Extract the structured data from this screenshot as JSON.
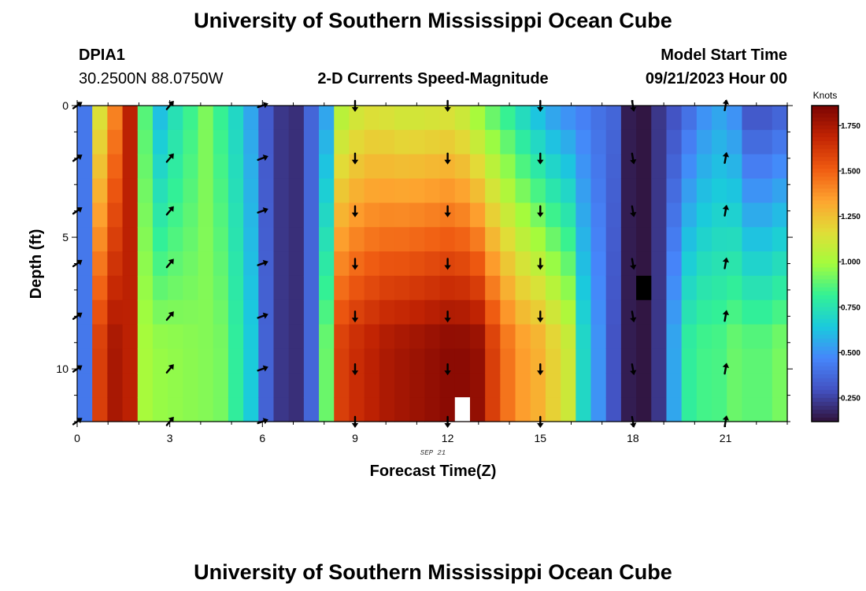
{
  "header": {
    "title": "University of Southern Mississippi Ocean Cube",
    "station": "DPIA1",
    "location": "30.2500N  88.0750W",
    "plot_title": "2-D Currents Speed-Magnitude",
    "model_start_label": "Model Start Time",
    "model_start_value": "09/21/2023 Hour 00"
  },
  "footer": {
    "title": "University of Southern Mississippi Ocean Cube"
  },
  "chart_data": {
    "type": "heatmap",
    "title": "2-D Currents Speed-Magnitude",
    "xlabel": "Forecast Time(Z)",
    "ylabel": "Depth (ft)",
    "date_annotation": "SEP 21",
    "colorbar_unit": "Knots",
    "xlim": [
      0,
      23
    ],
    "ylim": [
      0,
      12
    ],
    "x_ticks": [
      0,
      3,
      6,
      9,
      12,
      15,
      18,
      21
    ],
    "x_tick_labels": [
      "0",
      "3",
      "6",
      "9",
      "12",
      "15",
      "18",
      "21"
    ],
    "y_ticks": [
      0,
      5,
      10
    ],
    "y_tick_labels": [
      "0",
      "5",
      "10"
    ],
    "colorbar_range": [
      0.12,
      1.86
    ],
    "colorbar_ticks": [
      0.25,
      0.5,
      0.75,
      1.0,
      1.25,
      1.5,
      1.75
    ],
    "colorbar_tick_labels": [
      "0.250",
      "0.500",
      "0.750",
      "1.000",
      "1.250",
      "1.500",
      "1.750"
    ],
    "hour_columns": [
      0,
      0.5,
      1,
      1.5,
      2,
      2.5,
      3,
      3.5,
      4,
      4.5,
      5,
      5.5,
      6,
      6.5,
      7,
      7.5,
      8,
      8.5,
      9,
      9.5,
      10,
      10.5,
      11,
      11.5,
      12,
      12.5,
      13,
      13.5,
      14,
      14.5,
      15,
      15.5,
      16,
      16.5,
      17,
      17.5,
      18,
      18.5,
      19,
      19.5,
      20,
      20.5,
      21,
      21.5,
      22,
      22.5,
      23
    ],
    "depth_rows": [
      0,
      1,
      2,
      3,
      4,
      5,
      6,
      7,
      8,
      9,
      10,
      11,
      12
    ],
    "speed_profile_top": [
      0.42,
      1.15,
      1.42,
      1.7,
      0.87,
      0.62,
      0.74,
      0.83,
      0.93,
      0.82,
      0.7,
      0.55,
      0.32,
      0.22,
      0.2,
      0.36,
      0.55,
      1.05,
      1.12,
      1.15,
      1.14,
      1.12,
      1.12,
      1.13,
      1.14,
      1.1,
      1.0,
      0.9,
      0.82,
      0.72,
      0.63,
      0.55,
      0.5,
      0.45,
      0.4,
      0.36,
      0.15,
      0.13,
      0.22,
      0.3,
      0.4,
      0.5,
      0.55,
      0.5,
      0.32,
      0.32,
      0.36
    ],
    "speed_profile_bottom": [
      0.42,
      1.6,
      1.75,
      1.7,
      1.0,
      0.97,
      0.96,
      0.95,
      0.94,
      0.92,
      0.8,
      0.65,
      0.35,
      0.22,
      0.2,
      0.36,
      0.9,
      1.6,
      1.66,
      1.7,
      1.74,
      1.76,
      1.78,
      1.8,
      1.82,
      1.82,
      1.8,
      1.6,
      1.45,
      1.35,
      1.3,
      1.2,
      1.1,
      0.7,
      0.5,
      0.3,
      0.15,
      0.13,
      0.22,
      0.55,
      0.8,
      0.84,
      0.85,
      0.9,
      0.88,
      0.88,
      0.92
    ],
    "special_cells": [
      {
        "hour": 18.5,
        "depth": 7,
        "value": "missing",
        "color": "#000000"
      },
      {
        "hour": 12.5,
        "depth": 12,
        "value": "missing",
        "color": "#ffffff"
      }
    ],
    "arrow_hours": [
      0,
      3,
      6,
      9,
      12,
      15,
      18,
      21
    ],
    "arrow_depths": [
      0,
      2,
      4,
      6,
      8,
      10,
      12
    ],
    "arrow_directions_deg": [
      55,
      40,
      70,
      180,
      180,
      180,
      170,
      10
    ],
    "arrow_color": "#000000"
  }
}
